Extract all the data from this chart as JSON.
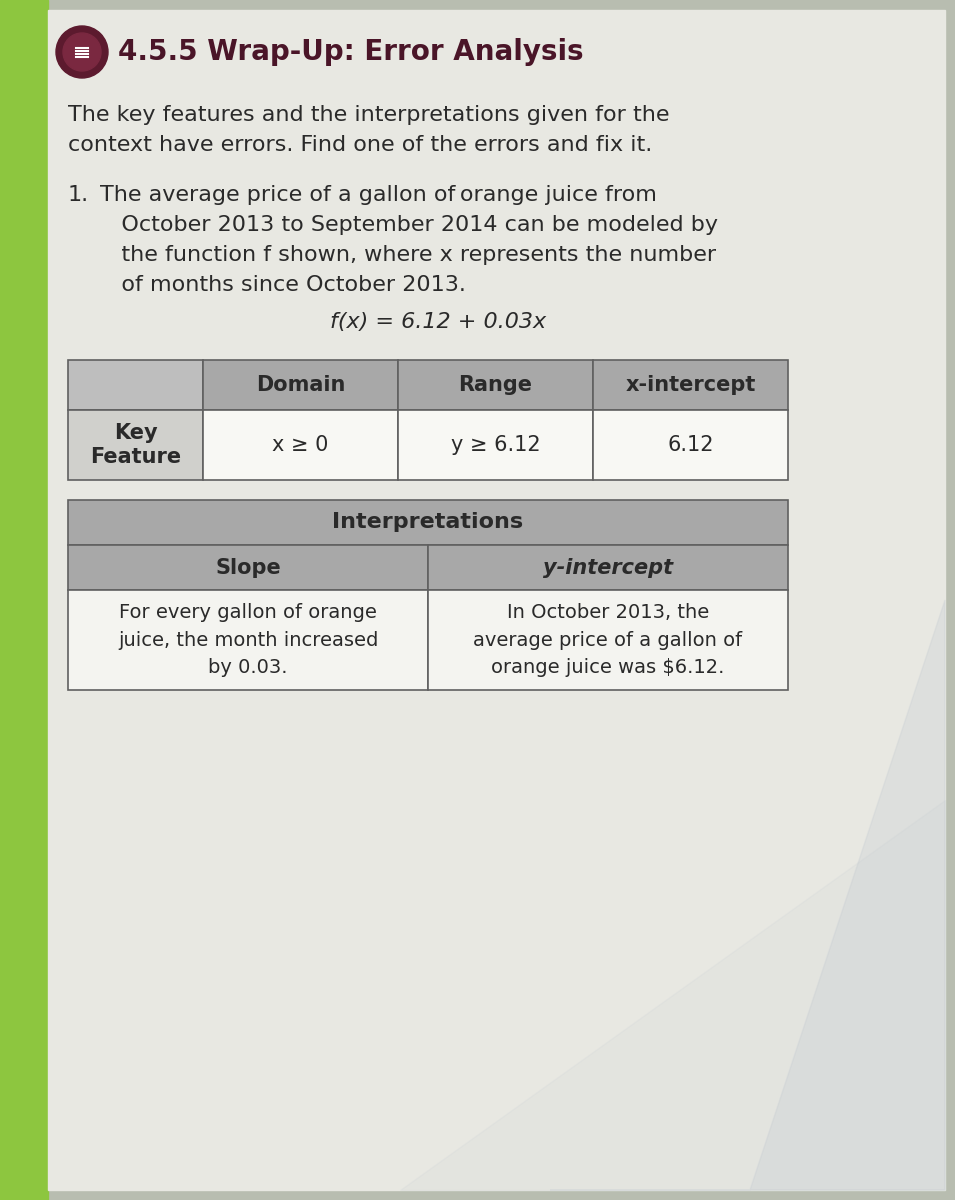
{
  "title": "4.5.5 Wrap-Up: Error Analysis",
  "title_color": "#4A1528",
  "page_bg_color": "#B8BDB0",
  "main_bg_color": "#E8E8E2",
  "left_strip_color": "#8DC63F",
  "intro_text_line1": "The key features and the interpretations given for the",
  "intro_text_line2": "context have errors. Find one of the errors and fix it.",
  "problem_num": "1.",
  "problem_line1": "The average price of a gallon of orange juice from",
  "problem_line2": "   October 2013 to September 2014 can be modeled by",
  "problem_line3": "   the function f shown, where x represents the number",
  "problem_line4": "   of months since October 2013.",
  "equation": "f(x) = 6.12 + 0.03x",
  "t1_col0_label": "Key\nFeature",
  "t1_headers": [
    "Domain",
    "Range",
    "x-intercept"
  ],
  "t1_cells": [
    "x ≥ 0",
    "y ≥ 6.12",
    "6.12"
  ],
  "t2_title": "Interpretations",
  "t2_col_headers": [
    "Slope",
    "y-intercept"
  ],
  "t2_slope": "For every gallon of orange\njuice, the month increased\nby 0.03.",
  "t2_yint": "In October 2013, the\naverage price of a gallon of\norange juice was $6.12.",
  "table_header_bg": "#A8A8A8",
  "table_cell_bg": "#F0F0EC",
  "table_border": "#606060",
  "text_dark": "#2A2A2A",
  "icon_outer": "#5C1A2E",
  "icon_inner": "#7A2840",
  "shadow_color": "#C0C8D0"
}
